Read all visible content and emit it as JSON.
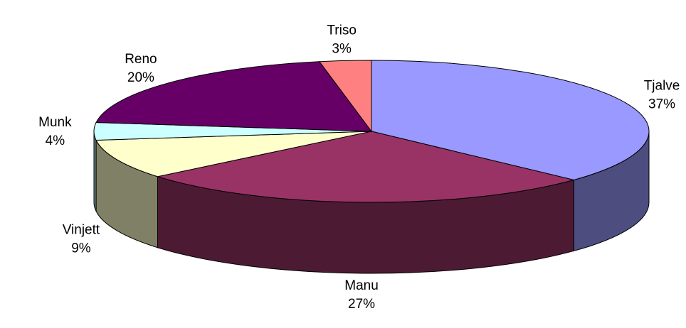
{
  "chart_data": {
    "type": "pie",
    "style": "3d",
    "categories": [
      "Tjalve",
      "Manu",
      "Vinjett",
      "Munk",
      "Reno",
      "Triso"
    ],
    "values": [
      37,
      27,
      9,
      4,
      20,
      3
    ],
    "value_labels": [
      "37%",
      "27%",
      "9%",
      "4%",
      "20%",
      "3%"
    ],
    "colors": [
      "#9999ff",
      "#993366",
      "#ffffcc",
      "#ccffff",
      "#660066",
      "#ff8080"
    ]
  }
}
